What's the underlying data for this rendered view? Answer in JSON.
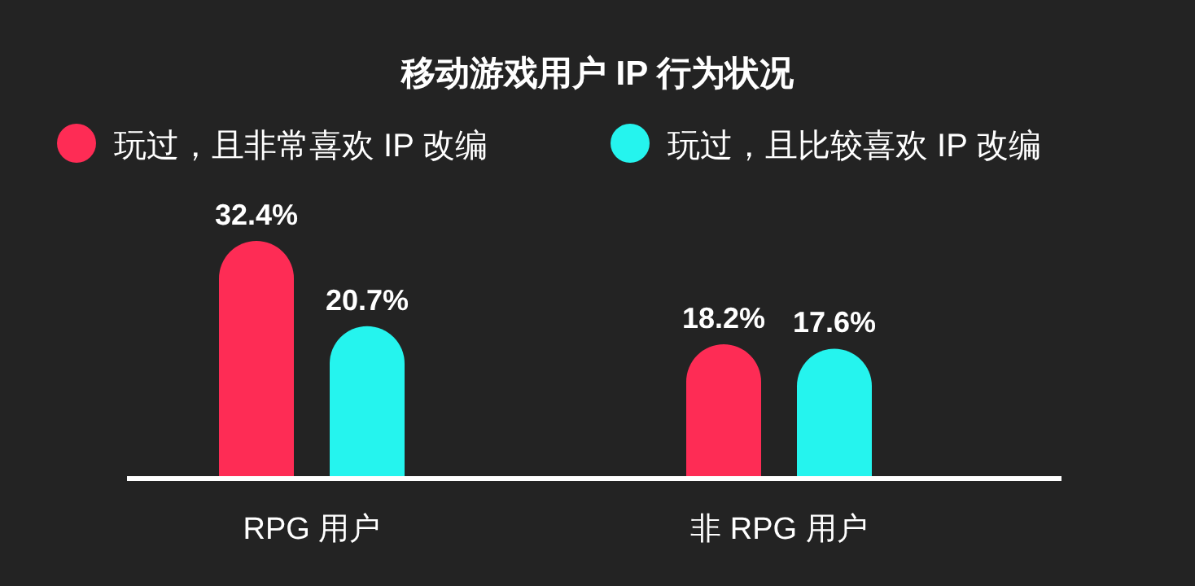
{
  "chart_data": {
    "type": "bar",
    "title": "移动游戏用户 IP 行为状况",
    "categories": [
      "RPG 用户",
      "非 RPG 用户"
    ],
    "legend": "top",
    "series": [
      {
        "name": "玩过，且非常喜欢 IP 改编",
        "color": "#fe2c55",
        "values": [
          32.4,
          18.2
        ],
        "value_labels": [
          "32.4%",
          "18.2%"
        ]
      },
      {
        "name": "玩过，且比较喜欢 IP 改编",
        "color": "#25f4ee",
        "values": [
          20.7,
          17.6
        ],
        "value_labels": [
          "20.7%",
          "17.6%"
        ]
      }
    ]
  }
}
